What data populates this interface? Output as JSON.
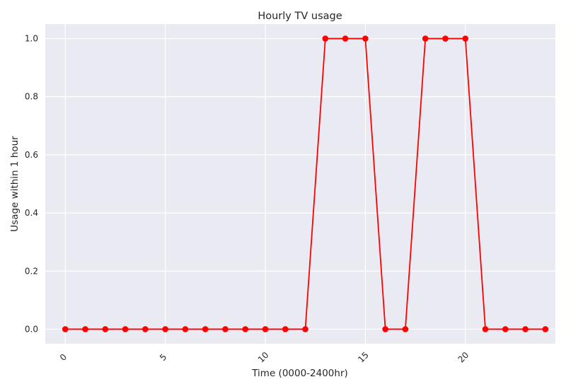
{
  "chart_data": {
    "type": "line",
    "title": "Hourly TV usage",
    "xlabel": "Time (0000-2400hr)",
    "ylabel": "Usage within 1 hour",
    "x": [
      0,
      1,
      2,
      3,
      4,
      5,
      6,
      7,
      8,
      9,
      10,
      11,
      12,
      13,
      14,
      15,
      16,
      17,
      18,
      19,
      20,
      21,
      22,
      23,
      24
    ],
    "series": [
      {
        "values": [
          0,
          0,
          0,
          0,
          0,
          0,
          0,
          0,
          0,
          0,
          0,
          0,
          0,
          1,
          1,
          1,
          0,
          0,
          1,
          1,
          1,
          0,
          0,
          0,
          0
        ],
        "color": "#ff0000",
        "marker": "circle"
      }
    ],
    "xlim": [
      -1,
      24.5
    ],
    "ylim": [
      -0.05,
      1.05
    ],
    "xticks": [
      0,
      5,
      10,
      15,
      20
    ],
    "xtick_labels": [
      "0",
      "5",
      "10",
      "15",
      "20"
    ],
    "xtick_rotation_deg": 45,
    "yticks": [
      0.0,
      0.2,
      0.4,
      0.6,
      0.8,
      1.0
    ],
    "ytick_labels": [
      "0.0",
      "0.2",
      "0.4",
      "0.6",
      "0.8",
      "1.0"
    ],
    "grid": true,
    "style": {
      "background": "#eaeaf2",
      "grid_color": "#ffffff"
    }
  }
}
